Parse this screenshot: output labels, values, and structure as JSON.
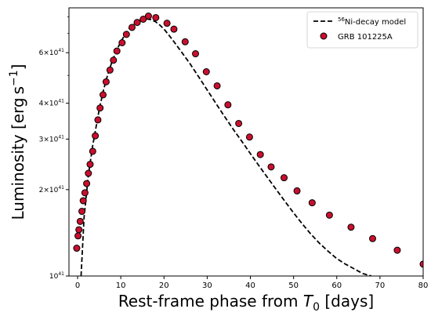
{
  "chart_data": {
    "type": "scatter",
    "title": "",
    "xlabel": "Rest-frame phase from T0 [days]",
    "xlabel_parts": {
      "before": "Rest-frame phase from ",
      "italic": "T",
      "sub": "0",
      "after": " [days]"
    },
    "ylabel": "Luminosity [erg s−1]",
    "ylabel_parts": {
      "main": "Luminosity [erg s",
      "sup": "−1",
      "end": "]"
    },
    "xlim": [
      -2,
      80
    ],
    "ylim": [
      1e+41,
      8.6e+41
    ],
    "yscale": "log",
    "xticks": [
      0,
      10,
      20,
      30,
      40,
      50,
      60,
      70,
      80
    ],
    "yticks": [
      {
        "value": 1e+41,
        "mant": "",
        "base": "10",
        "exp": "41"
      },
      {
        "value": 2e+41,
        "mant": "2×",
        "base": "10",
        "exp": "41"
      },
      {
        "value": 3e+41,
        "mant": "3×",
        "base": "10",
        "exp": "41"
      },
      {
        "value": 4e+41,
        "mant": "4×",
        "base": "10",
        "exp": "41"
      },
      {
        "value": 6e+41,
        "mant": "6×",
        "base": "10",
        "exp": "41"
      }
    ],
    "yminor_ticks": [
      5e+41,
      7e+41,
      8e+41
    ],
    "grid": false,
    "legend_position": "top-right",
    "series": [
      {
        "name": "56Ni-decay model",
        "name_parts": {
          "sup": "56",
          "text": "Ni-decay model"
        },
        "kind": "line",
        "style": "dashed",
        "color": "#000000",
        "x": [
          0.8,
          1.5,
          2.5,
          3.5,
          5,
          6,
          7,
          8,
          9,
          10,
          11,
          12,
          13,
          14,
          15,
          16,
          17,
          18,
          19,
          20,
          21,
          22,
          24,
          26,
          28,
          30,
          32,
          34,
          36,
          38,
          40,
          42,
          44,
          46,
          48,
          50,
          52,
          54,
          56,
          58,
          60,
          62,
          64,
          66,
          68
        ],
        "y": [
          1e+41,
          1.6e+41,
          2.25e+41,
          2.85e+41,
          3.8e+41,
          4.45e+41,
          5.05e+41,
          5.6e+41,
          6.1e+41,
          6.55e+41,
          6.95e+41,
          7.3e+41,
          7.55e+41,
          7.75e+41,
          7.85e+41,
          7.87e+41,
          7.82e+41,
          7.7e+41,
          7.5e+41,
          7.25e+41,
          6.95e+41,
          6.65e+41,
          6.05e+41,
          5.5e+41,
          4.95e+41,
          4.45e+41,
          4e+41,
          3.6e+41,
          3.25e+41,
          2.95e+41,
          2.67e+41,
          2.42e+41,
          2.2e+41,
          2e+41,
          1.82e+41,
          1.66e+41,
          1.52e+41,
          1.4e+41,
          1.3e+41,
          1.22e+41,
          1.15e+41,
          1.1e+41,
          1.06e+41,
          1.02e+41,
          1e+41
        ]
      },
      {
        "name": "GRB 101225A",
        "kind": "scatter",
        "color": "#c8102e",
        "edgecolor": "#000000",
        "x": [
          -0.2,
          0.1,
          0.3,
          0.6,
          1.0,
          1.3,
          1.7,
          2.1,
          2.5,
          2.9,
          3.5,
          4.1,
          4.7,
          5.2,
          5.9,
          6.6,
          7.5,
          8.3,
          9.1,
          10.3,
          11.3,
          12.6,
          13.8,
          15.2,
          16.4,
          18.1,
          20.7,
          22.3,
          24.9,
          27.3,
          29.8,
          32.3,
          34.8,
          37.3,
          39.8,
          42.3,
          44.8,
          47.8,
          50.8,
          54.3,
          58.3,
          63.3,
          68.3,
          74.0,
          80.0
        ],
        "y": [
          1.25e+41,
          1.38e+41,
          1.45e+41,
          1.55e+41,
          1.68e+41,
          1.83e+41,
          1.95e+41,
          2.1e+41,
          2.28e+41,
          2.45e+41,
          2.72e+41,
          3.08e+41,
          3.5e+41,
          3.85e+41,
          4.28e+41,
          4.75e+41,
          5.22e+41,
          5.65e+41,
          6.08e+41,
          6.5e+41,
          6.95e+41,
          7.35e+41,
          7.65e+41,
          7.85e+41,
          8.05e+41,
          7.95e+41,
          7.6e+41,
          7.25e+41,
          6.55e+41,
          5.95e+41,
          5.15e+41,
          4.6e+41,
          3.95e+41,
          3.4e+41,
          3.05e+41,
          2.65e+41,
          2.4e+41,
          2.2e+41,
          1.98e+41,
          1.8e+41,
          1.63e+41,
          1.48e+41,
          1.35e+41,
          1.23e+41,
          1.1e+41
        ]
      }
    ]
  }
}
